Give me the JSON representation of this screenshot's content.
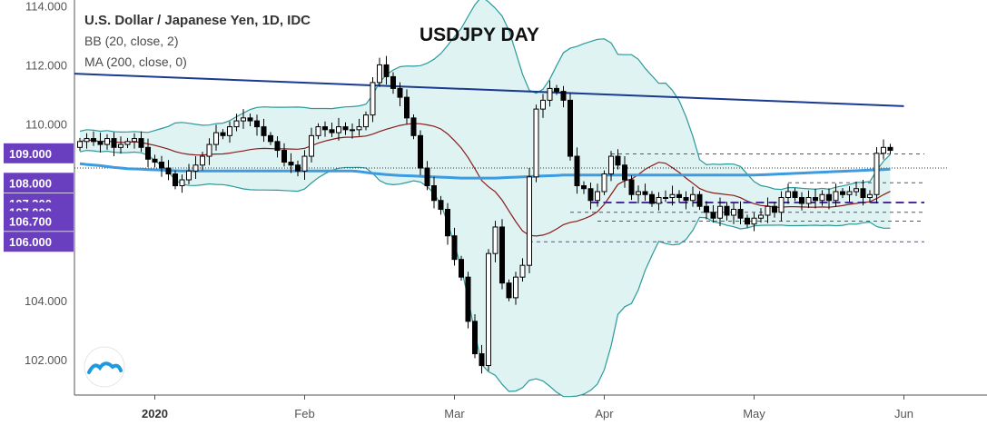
{
  "chart_data": {
    "type": "candlestick",
    "title": "USDJPY DAY",
    "legend": [
      "U.S. Dollar / Japanese Yen, 1D, IDC",
      "BB (20, close, 2)",
      "MA (200, close, 0)"
    ],
    "y_axis": {
      "ylim": [
        100.8,
        114.2
      ],
      "tick_labels": [
        "114.000",
        "112.000",
        "110.000",
        "104.000",
        "102.000"
      ],
      "tick_values": [
        114,
        112,
        110,
        104,
        102
      ],
      "price_tags": [
        {
          "label": "109.000",
          "value": 109.0
        },
        {
          "label": "108.000",
          "value": 108.0
        },
        {
          "label": "107.300",
          "value": 107.3
        },
        {
          "label": "107.000",
          "value": 107.0
        },
        {
          "label": "106.700",
          "value": 106.7
        },
        {
          "label": "106.000",
          "value": 106.0
        }
      ]
    },
    "x_axis": {
      "tick_labels": [
        {
          "label": "2020",
          "index": 11,
          "bold": true
        },
        {
          "label": "Feb",
          "index": 33,
          "bold": false
        },
        {
          "label": "Mar",
          "index": 55,
          "bold": false
        },
        {
          "label": "Apr",
          "index": 77,
          "bold": false
        },
        {
          "label": "May",
          "index": 99,
          "bold": false
        },
        {
          "label": "Jun",
          "index": 121,
          "bold": false
        }
      ]
    },
    "colors": {
      "up_body": "#ffffff",
      "down_body": "#000000",
      "candle_outline": "#000000",
      "bb_fill": "#dff3f3",
      "bb_line": "#2a9a9a",
      "bb_mid": "#8b1a1a",
      "ma200": "#3d9be0",
      "trendline": "#1a3a8f",
      "tag_fill": "#6a3fbf",
      "dashed_purple": "#4b2d9e",
      "dashed_grey": "#555577"
    },
    "closes": [
      109.4,
      109.5,
      109.4,
      109.3,
      109.5,
      109.2,
      109.3,
      109.4,
      109.5,
      109.2,
      108.8,
      108.7,
      108.5,
      108.3,
      107.9,
      108.1,
      108.4,
      108.6,
      108.9,
      109.3,
      109.7,
      109.6,
      109.9,
      110.1,
      110.2,
      110.1,
      109.9,
      109.6,
      109.4,
      109.1,
      108.7,
      108.6,
      108.4,
      108.9,
      109.6,
      109.9,
      109.8,
      109.7,
      109.9,
      109.8,
      109.8,
      109.9,
      110.3,
      111.4,
      112.0,
      111.6,
      111.2,
      110.9,
      110.2,
      109.6,
      108.5,
      107.9,
      107.4,
      107.1,
      106.2,
      105.4,
      104.8,
      103.3,
      102.2,
      101.8,
      105.6,
      106.5,
      104.6,
      104.1,
      104.8,
      105.2,
      108.2,
      110.5,
      110.8,
      111.2,
      111.1,
      110.8,
      108.9,
      107.9,
      107.8,
      107.4,
      107.7,
      108.3,
      108.9,
      108.6,
      108.1,
      107.6,
      107.7,
      107.6,
      107.3,
      107.5,
      107.5,
      107.6,
      107.5,
      107.4,
      107.6,
      107.2,
      107.0,
      106.8,
      107.2,
      106.9,
      107.1,
      106.8,
      106.6,
      106.8,
      106.9,
      107.2,
      107.0,
      107.5,
      107.7,
      107.5,
      107.3,
      107.5,
      107.4,
      107.6,
      107.4,
      107.7,
      107.6,
      107.7,
      107.8,
      107.5,
      107.6,
      109.0,
      109.2,
      109.1
    ],
    "opens": [
      109.2,
      109.4,
      109.5,
      109.4,
      109.3,
      109.5,
      109.2,
      109.3,
      109.4,
      109.5,
      109.2,
      108.8,
      108.7,
      108.5,
      108.3,
      107.9,
      108.1,
      108.4,
      108.6,
      108.9,
      109.3,
      109.7,
      109.6,
      109.9,
      110.1,
      110.2,
      110.1,
      109.9,
      109.6,
      109.4,
      109.1,
      108.7,
      108.6,
      108.4,
      108.9,
      109.6,
      109.9,
      109.8,
      109.7,
      109.9,
      109.8,
      109.8,
      109.9,
      110.3,
      111.4,
      112.0,
      111.6,
      111.2,
      110.9,
      110.2,
      109.6,
      108.5,
      107.9,
      107.4,
      107.1,
      106.2,
      105.4,
      104.8,
      103.3,
      102.2,
      101.8,
      105.6,
      106.5,
      104.6,
      104.1,
      104.8,
      105.2,
      108.2,
      110.5,
      110.8,
      111.2,
      111.1,
      110.8,
      108.9,
      107.9,
      107.8,
      107.4,
      107.7,
      108.3,
      108.9,
      108.6,
      108.1,
      107.6,
      107.7,
      107.6,
      107.3,
      107.5,
      107.5,
      107.6,
      107.5,
      107.4,
      107.6,
      107.2,
      107.0,
      106.8,
      107.2,
      106.9,
      107.1,
      106.8,
      106.6,
      106.8,
      106.9,
      107.2,
      107.0,
      107.5,
      107.7,
      107.5,
      107.3,
      107.5,
      107.4,
      107.6,
      107.4,
      107.7,
      107.6,
      107.7,
      107.8,
      107.5,
      107.6,
      109.0,
      109.2
    ],
    "ma200": [
      108.65,
      108.62,
      108.6,
      108.58,
      108.55,
      108.52,
      108.5,
      108.48,
      108.47,
      108.46,
      108.45,
      108.44,
      108.43,
      108.42,
      108.41,
      108.4,
      108.4,
      108.4,
      108.4,
      108.4,
      108.4,
      108.4,
      108.4,
      108.4,
      108.4,
      108.4,
      108.4,
      108.4,
      108.4,
      108.4,
      108.4,
      108.4,
      108.4,
      108.4,
      108.4,
      108.4,
      108.4,
      108.4,
      108.4,
      108.4,
      108.4,
      108.38,
      108.35,
      108.32,
      108.3,
      108.28,
      108.26,
      108.25,
      108.24,
      108.23,
      108.22,
      108.21,
      108.2,
      108.19,
      108.18,
      108.17,
      108.16,
      108.16,
      108.16,
      108.16,
      108.16,
      108.16,
      108.17,
      108.18,
      108.19,
      108.2,
      108.21,
      108.22,
      108.23,
      108.24,
      108.25,
      108.26,
      108.26,
      108.26,
      108.26,
      108.26,
      108.26,
      108.26,
      108.26,
      108.26,
      108.26,
      108.26,
      108.26,
      108.26,
      108.26,
      108.26,
      108.26,
      108.26,
      108.26,
      108.26,
      108.26,
      108.26,
      108.26,
      108.26,
      108.26,
      108.26,
      108.26,
      108.26,
      108.26,
      108.26,
      108.27,
      108.28,
      108.29,
      108.3,
      108.31,
      108.32,
      108.33,
      108.34,
      108.35,
      108.36,
      108.37,
      108.38,
      108.39,
      108.4,
      108.41,
      108.42,
      108.43,
      108.44,
      108.45,
      108.46
    ]
  },
  "annotations": {
    "trendline": {
      "from": [
        0,
        111.7
      ],
      "to": [
        121,
        110.6
      ]
    },
    "horizontal_levels": [
      {
        "value": 108.98,
        "from": 78,
        "to": 124,
        "style": "grey"
      },
      {
        "value": 108.0,
        "from": 104,
        "to": 124,
        "style": "grey"
      },
      {
        "value": 107.33,
        "from": 75,
        "to": 124,
        "style": "purple"
      },
      {
        "value": 107.0,
        "from": 72,
        "to": 124,
        "style": "grey"
      },
      {
        "value": 106.7,
        "from": 76,
        "to": 124,
        "style": "grey"
      },
      {
        "value": 106.0,
        "from": 66,
        "to": 124,
        "style": "grey"
      }
    ],
    "current_price_line": 108.5
  }
}
